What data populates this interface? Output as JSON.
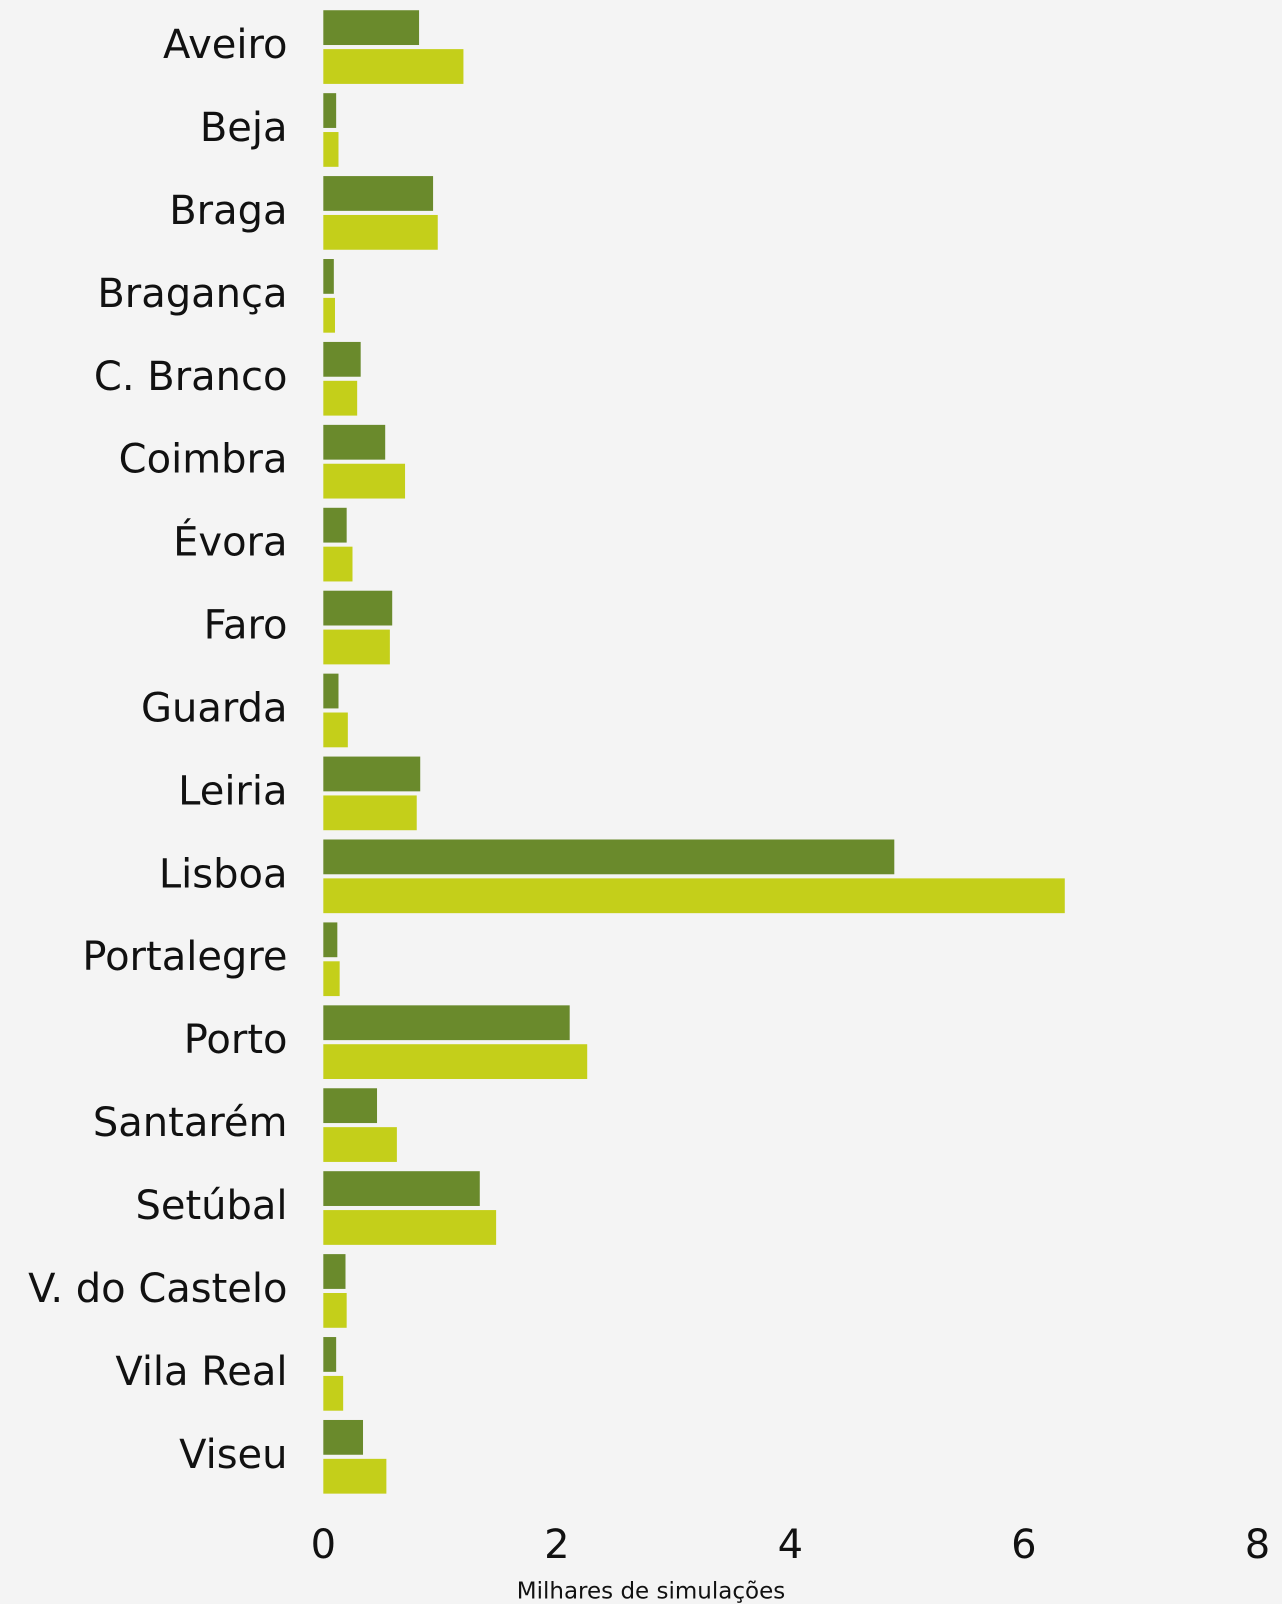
{
  "chart_data": {
    "type": "barh",
    "x_label": "Milhares de simulações",
    "categories": [
      "Aveiro",
      "Beja",
      "Braga",
      "Bragança",
      "C. Branco",
      "Coimbra",
      "Évora",
      "Faro",
      "Guarda",
      "Leiria",
      "Lisboa",
      "Portalegre",
      "Porto",
      "Santarém",
      "Setúbal",
      "V. do Castelo",
      "Vila Real",
      "Viseu"
    ],
    "series": [
      {
        "color": "#6a8a2c",
        "values": [
          0.82,
          0.11,
          0.94,
          0.09,
          0.32,
          0.53,
          0.2,
          0.59,
          0.13,
          0.83,
          4.89,
          0.12,
          2.11,
          0.46,
          1.34,
          0.19,
          0.11,
          0.34
        ]
      },
      {
        "color": "#c4cf1a",
        "values": [
          1.2,
          0.13,
          0.98,
          0.1,
          0.29,
          0.7,
          0.25,
          0.57,
          0.21,
          0.8,
          6.35,
          0.14,
          2.26,
          0.63,
          1.48,
          0.2,
          0.17,
          0.54
        ]
      }
    ],
    "xlim": [
      0,
      8
    ],
    "xticks": [
      0,
      2,
      4,
      6,
      8
    ],
    "grid": false
  }
}
